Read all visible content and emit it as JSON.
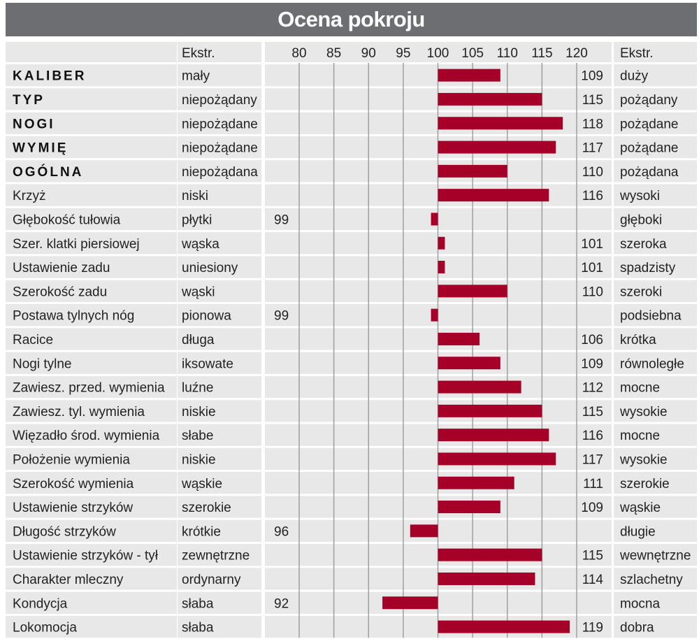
{
  "title": "Ocena pokroju",
  "header": {
    "extr_left": "Ekstr.",
    "extr_right": "Ekstr."
  },
  "colors": {
    "bar": "#a50027",
    "title_bg": "#6d6e71",
    "row_bg": "#e8e8e8",
    "grid": "#9a9a9a"
  },
  "chart_data": {
    "type": "bar",
    "orientation": "horizontal",
    "baseline": 100,
    "xlim": [
      80,
      120
    ],
    "ticks": [
      80,
      85,
      90,
      95,
      100,
      105,
      110,
      115,
      120
    ],
    "grid": true,
    "rows": [
      {
        "trait": "KALIBER",
        "bold": true,
        "low": "mały",
        "high": "duży",
        "value": 109
      },
      {
        "trait": "TYP",
        "bold": true,
        "low": "niepożądany",
        "high": "pożądany",
        "value": 115
      },
      {
        "trait": "NOGI",
        "bold": true,
        "low": "niepożądane",
        "high": "pożądane",
        "value": 118
      },
      {
        "trait": "WYMIĘ",
        "bold": true,
        "low": "niepożądane",
        "high": "pożądane",
        "value": 117
      },
      {
        "trait": "OGÓLNA",
        "bold": true,
        "low": "niepożądana",
        "high": "pożądana",
        "value": 110
      },
      {
        "trait": "Krzyż",
        "bold": false,
        "low": "niski",
        "high": "wysoki",
        "value": 116
      },
      {
        "trait": "Głębokość tułowia",
        "bold": false,
        "low": "płytki",
        "high": "głęboki",
        "value": 99
      },
      {
        "trait": "Szer. klatki piersiowej",
        "bold": false,
        "low": "wąska",
        "high": "szeroka",
        "value": 101
      },
      {
        "trait": "Ustawienie zadu",
        "bold": false,
        "low": "uniesiony",
        "high": "spadzisty",
        "value": 101
      },
      {
        "trait": "Szerokość zadu",
        "bold": false,
        "low": "wąski",
        "high": "szeroki",
        "value": 110
      },
      {
        "trait": "Postawa tylnych nóg",
        "bold": false,
        "low": "pionowa",
        "high": "podsiebna",
        "value": 99
      },
      {
        "trait": "Racice",
        "bold": false,
        "low": "długa",
        "high": "krótka",
        "value": 106
      },
      {
        "trait": "Nogi tylne",
        "bold": false,
        "low": "iksowate",
        "high": "równoległe",
        "value": 109
      },
      {
        "trait": "Zawiesz. przed. wymienia",
        "bold": false,
        "low": "luźne",
        "high": "mocne",
        "value": 112
      },
      {
        "trait": "Zawiesz. tyl. wymienia",
        "bold": false,
        "low": "niskie",
        "high": "wysokie",
        "value": 115
      },
      {
        "trait": "Więzadło środ. wymienia",
        "bold": false,
        "low": "słabe",
        "high": "mocne",
        "value": 116
      },
      {
        "trait": "Położenie wymienia",
        "bold": false,
        "low": "niskie",
        "high": "wysokie",
        "value": 117
      },
      {
        "trait": "Szerokość wymienia",
        "bold": false,
        "low": "wąskie",
        "high": "szerokie",
        "value": 111
      },
      {
        "trait": "Ustawienie strzyków",
        "bold": false,
        "low": "szerokie",
        "high": "wąskie",
        "value": 109
      },
      {
        "trait": "Długość strzyków",
        "bold": false,
        "low": "krótkie",
        "high": "długie",
        "value": 96
      },
      {
        "trait": "Ustawienie strzyków - tył",
        "bold": false,
        "low": "zewnętrzne",
        "high": "wewnętrzne",
        "value": 115
      },
      {
        "trait": "Charakter mleczny",
        "bold": false,
        "low": "ordynarny",
        "high": "szlachetny",
        "value": 114
      },
      {
        "trait": "Kondycja",
        "bold": false,
        "low": "słaba",
        "high": "mocna",
        "value": 92
      },
      {
        "trait": "Lokomocja",
        "bold": false,
        "low": "słaba",
        "high": "dobra",
        "value": 119
      }
    ]
  }
}
